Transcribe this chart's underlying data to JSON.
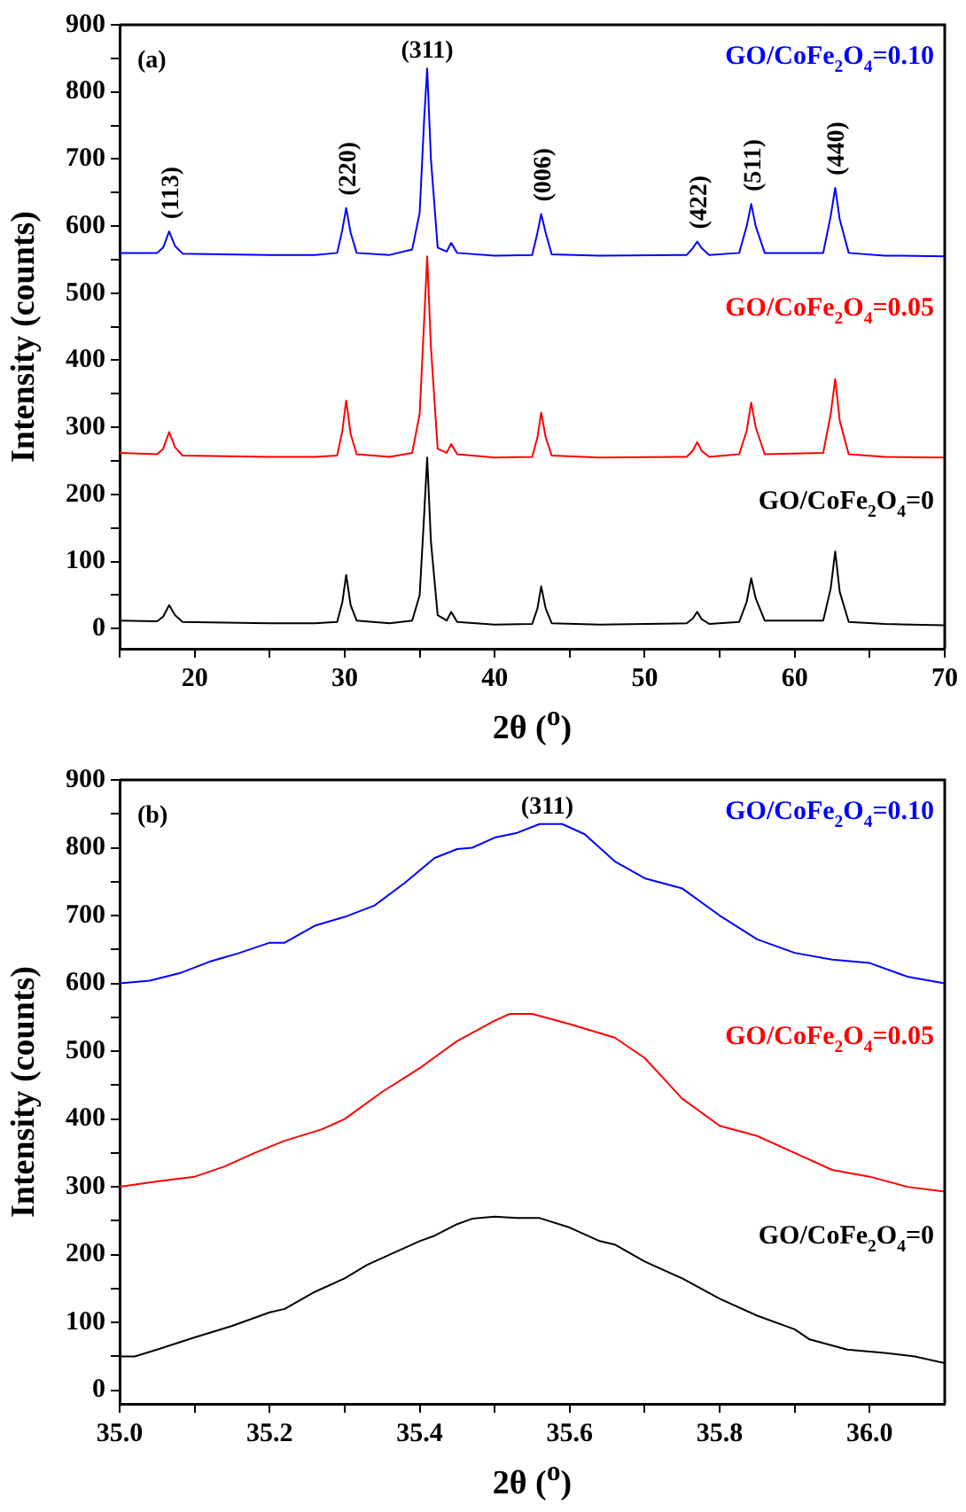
{
  "chart_data": [
    {
      "type": "line",
      "xlabel": "2θ ($^{o}$)",
      "ylabel": "Intensity (counts)",
      "xlim": [
        15,
        70
      ],
      "xticks": [
        {
          "value": 15,
          "label": null
        },
        20,
        {
          "value": 25,
          "label": null
        },
        30,
        {
          "value": 35,
          "label": null
        },
        40,
        {
          "value": 45,
          "label": null
        },
        50,
        {
          "value": 55,
          "label": null
        },
        60,
        {
          "value": 65,
          "label": null
        },
        70
      ],
      "ylim": [
        -30,
        900
      ],
      "yticks": [
        0,
        {
          "value": 50,
          "label": null
        },
        100,
        {
          "value": 150,
          "label": null
        },
        200,
        {
          "value": 250,
          "label": null
        },
        300,
        {
          "value": 350,
          "label": null
        },
        400,
        {
          "value": 450,
          "label": null
        },
        500,
        {
          "value": 550,
          "label": null
        },
        600,
        {
          "value": 650,
          "label": null
        },
        700,
        {
          "value": 750,
          "label": null
        },
        800,
        {
          "value": 850,
          "label": null
        },
        900
      ],
      "grid": false,
      "legend": false,
      "marker": "none",
      "line_style": "solid",
      "x": [
        15,
        17.5,
        17.9,
        18.3,
        18.7,
        19.2,
        22,
        25,
        28,
        29.5,
        29.85,
        30.1,
        30.4,
        30.8,
        33,
        34.5,
        35.0,
        35.3,
        35.5,
        35.75,
        36.2,
        36.8,
        37.1,
        37.5,
        40,
        42.5,
        42.85,
        43.1,
        43.4,
        43.8,
        47,
        52.8,
        53.2,
        53.5,
        53.8,
        54.3,
        56.3,
        56.8,
        57.1,
        57.4,
        58,
        61.9,
        62.4,
        62.7,
        63.0,
        63.6,
        66,
        70
      ],
      "series": [
        {
          "name": "GO/CoFe$_{2}$O$_{4}$=0",
          "color": "#000000",
          "values": [
            12,
            11,
            18,
            35,
            20,
            10,
            9,
            8,
            8,
            10,
            40,
            80,
            35,
            12,
            8,
            12,
            50,
            170,
            255,
            130,
            20,
            12,
            25,
            10,
            6,
            7,
            30,
            63,
            30,
            8,
            6,
            8,
            15,
            25,
            14,
            7,
            10,
            40,
            75,
            45,
            12,
            12,
            60,
            115,
            55,
            10,
            7,
            5
          ]
        },
        {
          "name": "GO/CoFe$_{2}$O$_{4}$=0.05",
          "color": "#ff0000",
          "values": [
            262,
            260,
            268,
            293,
            270,
            258,
            257,
            256,
            256,
            258,
            295,
            340,
            290,
            260,
            256,
            262,
            320,
            460,
            555,
            420,
            268,
            262,
            275,
            260,
            255,
            256,
            285,
            322,
            285,
            258,
            255,
            256,
            265,
            278,
            265,
            256,
            260,
            295,
            337,
            300,
            260,
            262,
            320,
            372,
            310,
            260,
            256,
            255
          ]
        },
        {
          "name": "GO/CoFe$_{2}$O$_{4}$=0.10",
          "color": "#0000ff",
          "values": [
            560,
            560,
            568,
            592,
            570,
            559,
            558,
            557,
            557,
            560,
            595,
            627,
            590,
            560,
            557,
            565,
            620,
            760,
            835,
            700,
            568,
            562,
            575,
            560,
            556,
            557,
            590,
            618,
            590,
            558,
            556,
            557,
            567,
            577,
            567,
            557,
            560,
            600,
            633,
            600,
            560,
            560,
            615,
            657,
            610,
            560,
            556,
            555
          ]
        }
      ],
      "annotations": [
        "(a)",
        {
          "text": "(113)",
          "x": 18.3,
          "y": 592
        },
        {
          "text": "(220)",
          "x": 30.1,
          "y": 627
        },
        {
          "text": "(311)",
          "x": 35.5,
          "y": 835
        },
        {
          "text": "(006)",
          "x": 43.1,
          "y": 618
        },
        {
          "text": "(422)",
          "x": 53.5,
          "y": 577
        },
        {
          "text": "(511)",
          "x": 57.1,
          "y": 633
        },
        {
          "text": "(440)",
          "x": 62.7,
          "y": 657
        }
      ]
    },
    {
      "type": "line",
      "xlabel": "2θ ($^{o}$)",
      "ylabel": "Intensity (counts)",
      "xlim": [
        35,
        36.1
      ],
      "xticks": [
        {
          "value": 35,
          "label": "35.0"
        },
        {
          "value": 35.1,
          "label": null
        },
        {
          "value": 35.2,
          "label": "35.2"
        },
        {
          "value": 35.3,
          "label": null
        },
        {
          "value": 35.4,
          "label": "35.4"
        },
        {
          "value": 35.5,
          "label": null
        },
        {
          "value": 35.6,
          "label": "35.6"
        },
        {
          "value": 35.7,
          "label": null
        },
        {
          "value": 35.8,
          "label": "35.8"
        },
        {
          "value": 35.9,
          "label": null
        },
        {
          "value": 36,
          "label": "36.0"
        }
      ],
      "ylim": [
        -20,
        900
      ],
      "yticks": [
        0,
        {
          "value": 50,
          "label": null
        },
        100,
        {
          "value": 150,
          "label": null
        },
        200,
        {
          "value": 250,
          "label": null
        },
        300,
        {
          "value": 350,
          "label": null
        },
        400,
        {
          "value": 450,
          "label": null
        },
        500,
        {
          "value": 550,
          "label": null
        },
        600,
        {
          "value": 650,
          "label": null
        },
        700,
        {
          "value": 750,
          "label": null
        },
        800,
        {
          "value": 850,
          "label": null
        },
        900
      ],
      "grid": false,
      "legend": false,
      "marker": "none",
      "line_style": "solid",
      "series": [
        {
          "name": "GO/CoFe$_{2}$O$_{4}$=0",
          "color": "#000000",
          "x": [
            35.0,
            35.02,
            35.05,
            35.1,
            35.15,
            35.2,
            35.22,
            35.26,
            35.3,
            35.33,
            35.36,
            35.4,
            35.42,
            35.45,
            35.47,
            35.5,
            35.53,
            35.56,
            35.6,
            35.64,
            35.66,
            35.7,
            35.75,
            35.8,
            35.85,
            35.9,
            35.92,
            35.97,
            36.02,
            36.06,
            36.1
          ],
          "values": [
            50,
            50,
            60,
            78,
            95,
            115,
            120,
            145,
            165,
            185,
            200,
            220,
            228,
            245,
            253,
            256,
            254,
            254,
            240,
            220,
            215,
            190,
            165,
            135,
            110,
            90,
            75,
            60,
            55,
            50,
            40
          ]
        },
        {
          "name": "GO/CoFe$_{2}$O$_{4}$=0.05",
          "color": "#ff0000",
          "x": [
            35.0,
            35.05,
            35.1,
            35.14,
            35.18,
            35.22,
            35.27,
            35.3,
            35.35,
            35.4,
            35.45,
            35.5,
            35.52,
            35.55,
            35.6,
            35.66,
            35.7,
            35.75,
            35.8,
            35.85,
            35.9,
            35.95,
            36.0,
            36.05,
            36.1
          ],
          "values": [
            300,
            308,
            315,
            330,
            350,
            368,
            385,
            400,
            440,
            475,
            515,
            545,
            555,
            555,
            540,
            520,
            490,
            430,
            390,
            375,
            350,
            325,
            315,
            300,
            293
          ]
        },
        {
          "name": "GO/CoFe$_{2}$O$_{4}$=0.10",
          "color": "#0000ff",
          "x": [
            35.0,
            35.04,
            35.08,
            35.12,
            35.16,
            35.2,
            35.22,
            35.26,
            35.3,
            35.34,
            35.38,
            35.42,
            35.45,
            35.47,
            35.5,
            35.53,
            35.56,
            35.59,
            35.62,
            35.66,
            35.7,
            35.75,
            35.8,
            35.85,
            35.9,
            35.95,
            36.0,
            36.05,
            36.1
          ],
          "values": [
            600,
            604,
            615,
            632,
            645,
            660,
            660,
            685,
            698,
            715,
            748,
            785,
            798,
            800,
            815,
            822,
            835,
            835,
            820,
            780,
            755,
            740,
            700,
            665,
            645,
            635,
            630,
            610,
            600
          ]
        }
      ],
      "annotations": [
        "(b)",
        {
          "text": "(311)",
          "x": 35.57,
          "y": 835
        }
      ]
    }
  ]
}
